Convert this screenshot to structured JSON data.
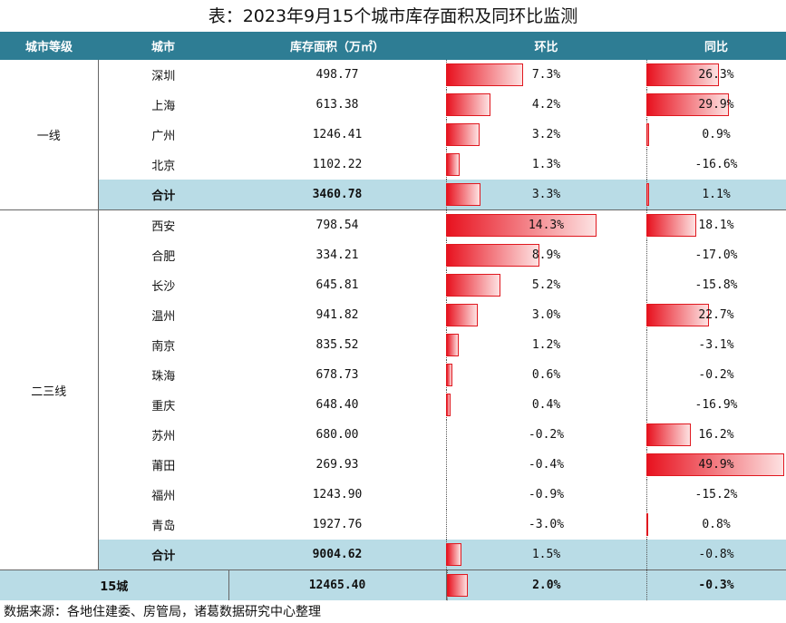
{
  "title": "表：2023年9月15个城市库存面积及同环比监测",
  "headers": [
    "城市等级",
    "城市",
    "库存面积（万㎡）",
    "环比",
    "同比"
  ],
  "groups": [
    {
      "tier": "一线",
      "rows": [
        {
          "city": "深圳",
          "area": "498.77",
          "mom": "7.3%",
          "mom_v": 7.3,
          "yoy": "26.3%",
          "yoy_v": 26.3
        },
        {
          "city": "上海",
          "area": "613.38",
          "mom": "4.2%",
          "mom_v": 4.2,
          "yoy": "29.9%",
          "yoy_v": 29.9
        },
        {
          "city": "广州",
          "area": "1246.41",
          "mom": "3.2%",
          "mom_v": 3.2,
          "yoy": "0.9%",
          "yoy_v": 0.9
        },
        {
          "city": "北京",
          "area": "1102.22",
          "mom": "1.3%",
          "mom_v": 1.3,
          "yoy": "-16.6%",
          "yoy_v": -16.6
        }
      ],
      "subtotal": {
        "label": "合计",
        "area": "3460.78",
        "mom": "3.3%",
        "mom_v": 3.3,
        "yoy": "1.1%",
        "yoy_v": 1.1
      }
    },
    {
      "tier": "二三线",
      "rows": [
        {
          "city": "西安",
          "area": "798.54",
          "mom": "14.3%",
          "mom_v": 14.3,
          "yoy": "18.1%",
          "yoy_v": 18.1
        },
        {
          "city": "合肥",
          "area": "334.21",
          "mom": "8.9%",
          "mom_v": 8.9,
          "yoy": "-17.0%",
          "yoy_v": -17.0
        },
        {
          "city": "长沙",
          "area": "645.81",
          "mom": "5.2%",
          "mom_v": 5.2,
          "yoy": "-15.8%",
          "yoy_v": -15.8
        },
        {
          "city": "温州",
          "area": "941.82",
          "mom": "3.0%",
          "mom_v": 3.0,
          "yoy": "22.7%",
          "yoy_v": 22.7
        },
        {
          "city": "南京",
          "area": "835.52",
          "mom": "1.2%",
          "mom_v": 1.2,
          "yoy": "-3.1%",
          "yoy_v": -3.1
        },
        {
          "city": "珠海",
          "area": "678.73",
          "mom": "0.6%",
          "mom_v": 0.6,
          "yoy": "-0.2%",
          "yoy_v": -0.2
        },
        {
          "city": "重庆",
          "area": "648.40",
          "mom": "0.4%",
          "mom_v": 0.4,
          "yoy": "-16.9%",
          "yoy_v": -16.9
        },
        {
          "city": "苏州",
          "area": "680.00",
          "mom": "-0.2%",
          "mom_v": -0.2,
          "yoy": "16.2%",
          "yoy_v": 16.2
        },
        {
          "city": "莆田",
          "area": "269.93",
          "mom": "-0.4%",
          "mom_v": -0.4,
          "yoy": "49.9%",
          "yoy_v": 49.9
        },
        {
          "city": "福州",
          "area": "1243.90",
          "mom": "-0.9%",
          "mom_v": -0.9,
          "yoy": "-15.2%",
          "yoy_v": -15.2
        },
        {
          "city": "青岛",
          "area": "1927.76",
          "mom": "-3.0%",
          "mom_v": -3.0,
          "yoy": "0.8%",
          "yoy_v": 0.8
        }
      ],
      "subtotal": {
        "label": "合计",
        "area": "9004.62",
        "mom": "1.5%",
        "mom_v": 1.5,
        "yoy": "-0.8%",
        "yoy_v": -0.8
      }
    }
  ],
  "total": {
    "label": "15城",
    "area": "12465.40",
    "mom": "2.0%",
    "mom_v": 2.0,
    "yoy": "-0.3%",
    "yoy_v": -0.3
  },
  "footer": "数据来源：各地住建委、房管局，诸葛数据研究中心整理",
  "colors": {
    "header_bg": "#2e7d94",
    "subtotal_bg": "#b9dce6",
    "positive": "#e8121f",
    "negative": "#2dc57f"
  }
}
